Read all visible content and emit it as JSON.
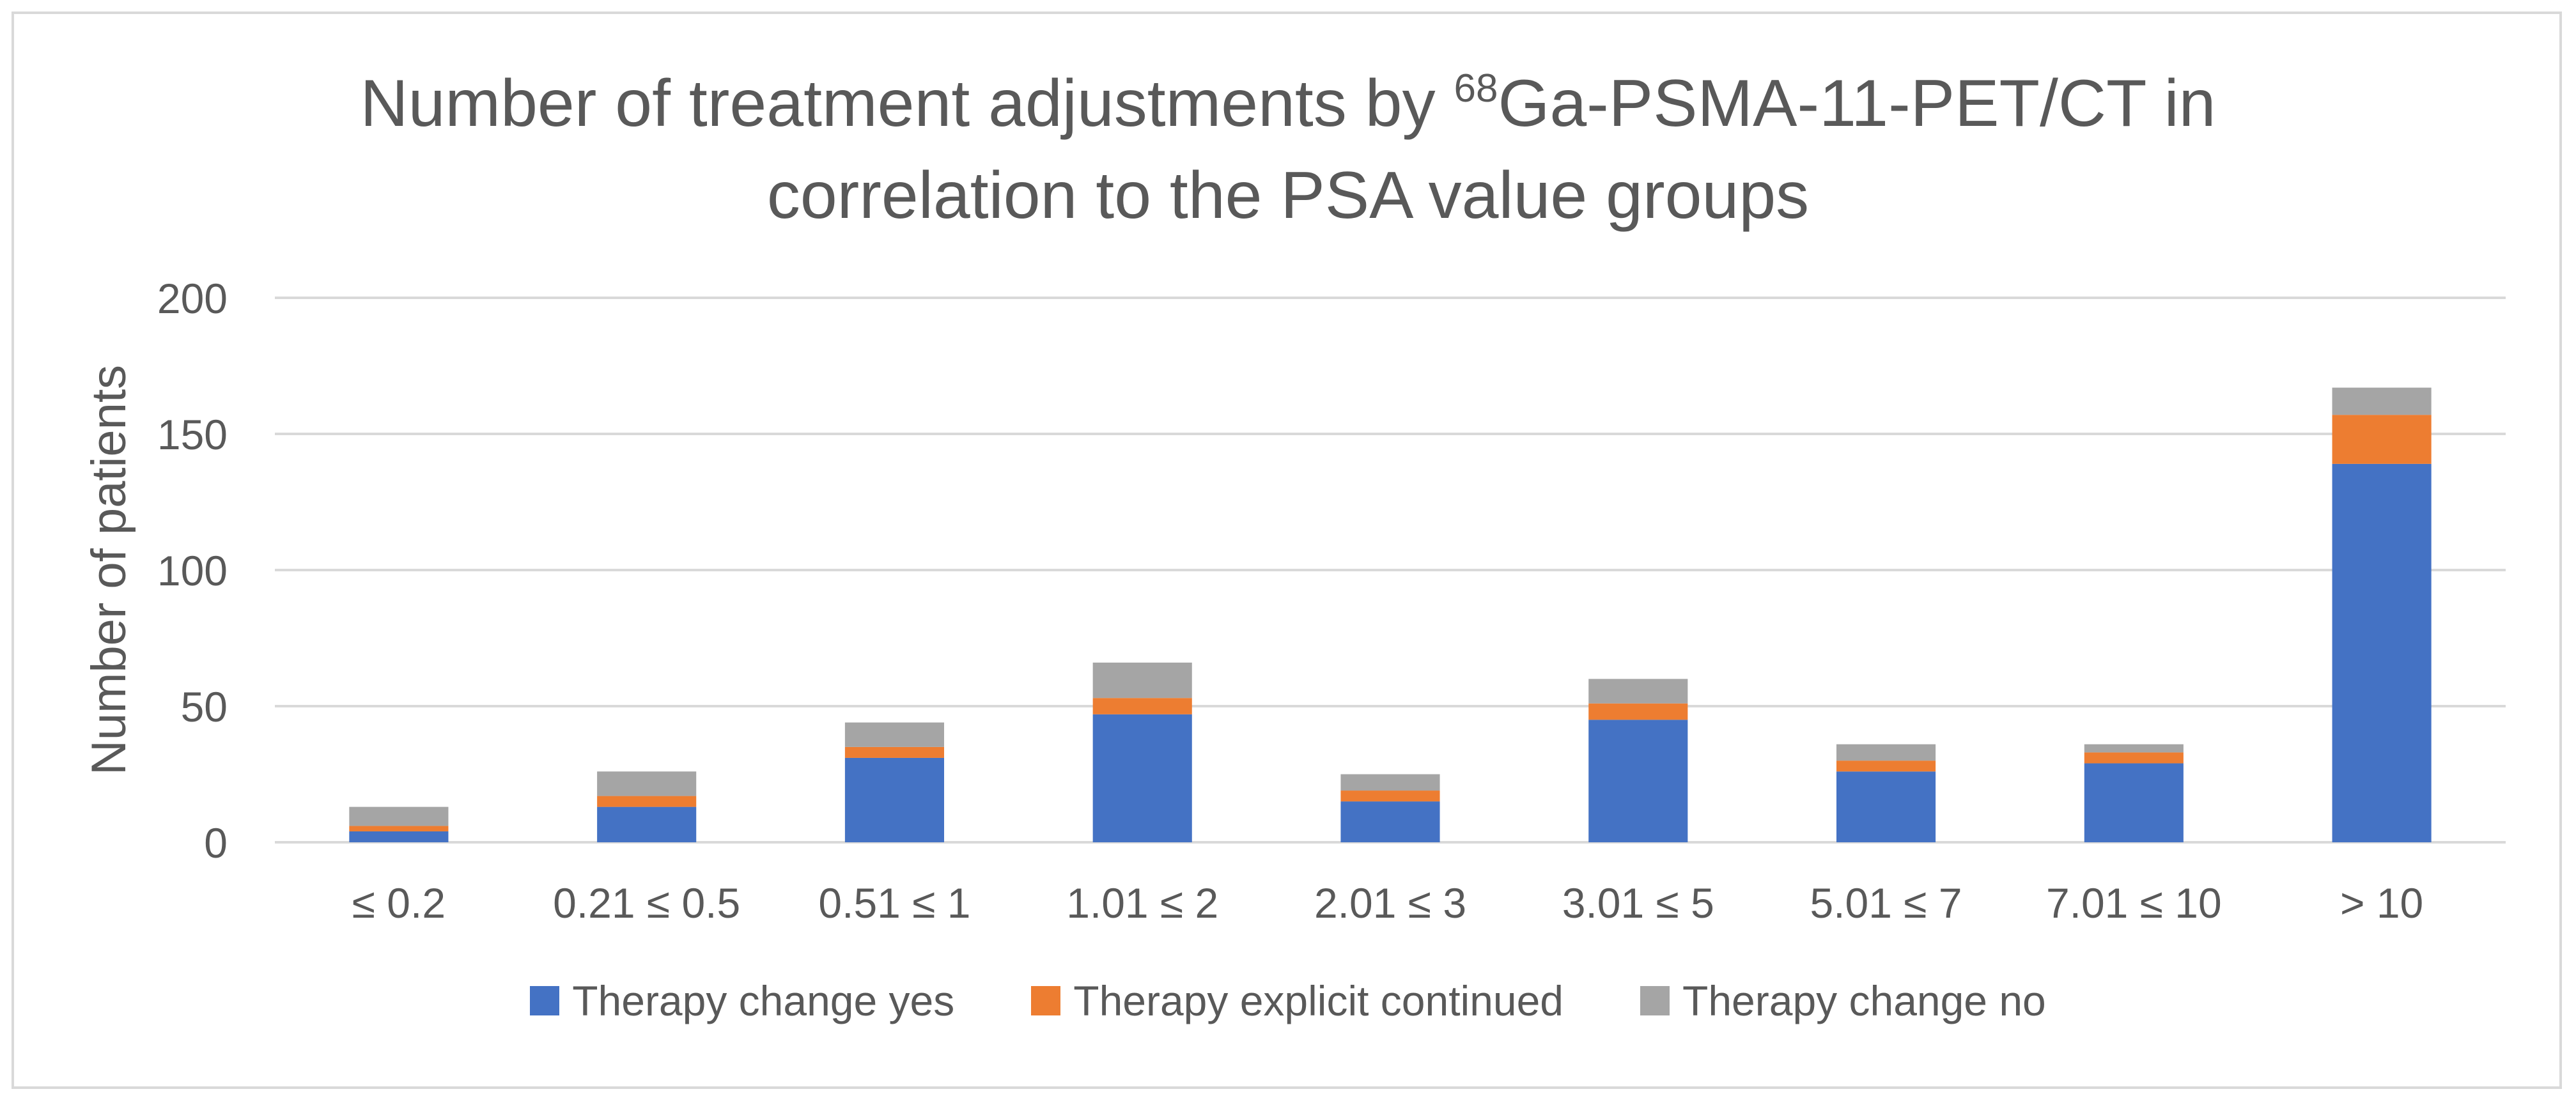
{
  "chart_data": {
    "type": "bar",
    "stacked": true,
    "title_main": "Number of treatment adjustments by ",
    "title_sup": "68",
    "title_rest": "Ga-PSMA-11-PET/CT in",
    "title_line2": "correlation to the PSA value groups",
    "ylabel": "Number of patients",
    "xlabel": "",
    "ylim": [
      0,
      200
    ],
    "yticks": [
      "0",
      "50",
      "100",
      "150",
      "200"
    ],
    "grid": true,
    "legend_position": "bottom",
    "categories": [
      "≤ 0.2",
      "0.21 ≤ 0.5",
      "0.51 ≤ 1",
      "1.01 ≤ 2",
      "2.01 ≤ 3",
      "3.01 ≤ 5",
      "5.01 ≤ 7",
      "7.01 ≤ 10",
      "> 10"
    ],
    "series": [
      {
        "name": "Therapy change yes",
        "color": "#4472C4",
        "values": [
          4,
          13,
          31,
          47,
          15,
          45,
          26,
          29,
          139
        ]
      },
      {
        "name": "Therapy explicit continued",
        "color": "#ED7D31",
        "values": [
          2,
          4,
          4,
          6,
          4,
          6,
          4,
          4,
          18
        ]
      },
      {
        "name": "Therapy change no",
        "color": "#A5A5A5",
        "values": [
          7,
          9,
          9,
          13,
          6,
          9,
          6,
          3,
          10
        ]
      }
    ]
  }
}
